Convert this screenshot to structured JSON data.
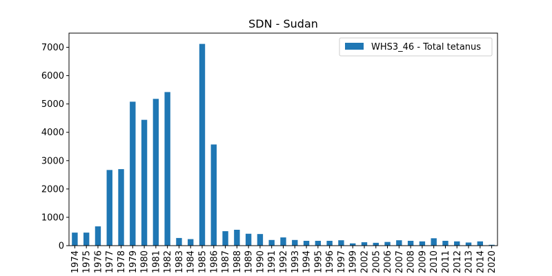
{
  "chart_data": {
    "type": "bar",
    "title": "SDN - Sudan",
    "xlabel": "",
    "ylabel": "",
    "categories": [
      "1974",
      "1975",
      "1976",
      "1977",
      "1978",
      "1979",
      "1980",
      "1981",
      "1982",
      "1983",
      "1984",
      "1985",
      "1986",
      "1987",
      "1988",
      "1989",
      "1990",
      "1991",
      "1992",
      "1993",
      "1994",
      "1995",
      "1996",
      "1997",
      "1999",
      "2002",
      "2005",
      "2006",
      "2007",
      "2008",
      "2009",
      "2010",
      "2011",
      "2012",
      "2013",
      "2014",
      "2020"
    ],
    "series": [
      {
        "name": "WHS3_46 - Total tetanus",
        "color": "#1f77b4",
        "values": [
          460,
          460,
          680,
          2670,
          2700,
          5080,
          4440,
          5180,
          5420,
          270,
          230,
          7120,
          3570,
          510,
          560,
          420,
          410,
          200,
          290,
          200,
          170,
          170,
          170,
          190,
          80,
          120,
          100,
          130,
          190,
          170,
          150,
          260,
          170,
          150,
          110,
          150,
          30
        ]
      }
    ],
    "ylim": [
      0,
      7500
    ],
    "yticks": [
      0,
      1000,
      2000,
      3000,
      4000,
      5000,
      6000,
      7000
    ],
    "grid": false,
    "legend_position": "top-right"
  }
}
